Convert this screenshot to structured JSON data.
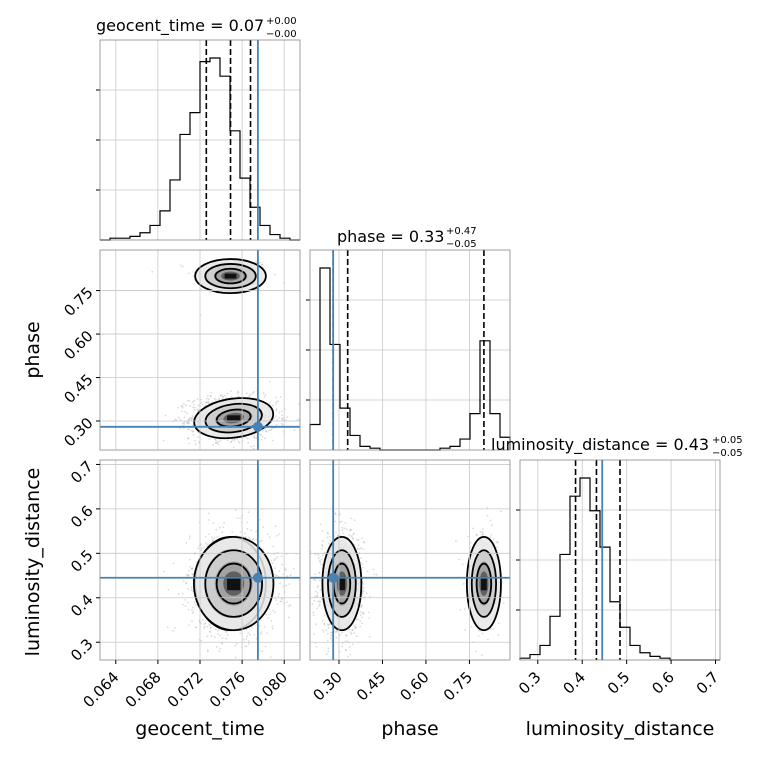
{
  "chart_data": {
    "type": "corner",
    "parameters": [
      "geocent_time",
      "phase",
      "luminosity_distance"
    ],
    "truths": {
      "geocent_time": 0.0775,
      "phase": 0.28,
      "luminosity_distance": 0.445
    },
    "truth_color": "#4682b4",
    "titles": [
      {
        "param": "geocent_time",
        "text": "geocent_time = 0.07",
        "sup": "+0.00",
        "sub": "−0.00"
      },
      {
        "param": "phase",
        "text": "phase = 0.33",
        "sup": "+0.47",
        "sub": "−0.05"
      },
      {
        "param": "luminosity_distance",
        "text": "luminosity_distance = 0.43",
        "sup": "+0.05",
        "sub": "−0.05"
      }
    ],
    "axis_labels": {
      "geocent_time": "geocent_time",
      "phase": "phase",
      "luminosity_distance": "luminosity_distance"
    },
    "ranges": {
      "geocent_time": [
        0.0625,
        0.0815
      ],
      "phase": [
        0.2,
        0.89
      ],
      "luminosity_distance": [
        0.26,
        0.71
      ]
    },
    "ticks": {
      "geocent_time": [
        "0.064",
        "0.068",
        "0.072",
        "0.076",
        "0.080"
      ],
      "phase": [
        "0.30",
        "0.45",
        "0.60",
        "0.75"
      ],
      "luminosity_distance": [
        "0.3",
        "0.4",
        "0.5",
        "0.6",
        "0.7"
      ]
    },
    "quantiles": {
      "geocent_time": [
        0.0726,
        0.0749,
        0.0768
      ],
      "phase": [
        0.28,
        0.33,
        0.8
      ],
      "luminosity_distance": [
        0.385,
        0.432,
        0.485
      ]
    },
    "histograms": {
      "geocent_time": {
        "edges": [
          0.0625,
          0.0815
        ],
        "counts": [
          0,
          1,
          1,
          2,
          4,
          8,
          16,
          33,
          58,
          70,
          98,
          100,
          90,
          60,
          34,
          18,
          8,
          3,
          1,
          0
        ]
      },
      "phase": {
        "edges": [
          0.2,
          0.89
        ],
        "counts": [
          14,
          100,
          58,
          23,
          8,
          2,
          1,
          0,
          0,
          0,
          0,
          0,
          0,
          1,
          2,
          6,
          20,
          60,
          20,
          7
        ]
      },
      "luminosity_distance": {
        "edges": [
          0.26,
          0.71
        ],
        "counts": [
          1,
          3,
          8,
          24,
          58,
          90,
          100,
          82,
          62,
          32,
          18,
          8,
          4,
          2,
          1,
          0,
          0,
          0,
          0,
          0
        ]
      }
    },
    "modes": [
      {
        "geocent_time": 0.0749,
        "phase": 0.8,
        "luminosity_distance": 0.432,
        "w": 0.15,
        "sd": {
          "geocent_time": 0.0016,
          "phase": 0.028,
          "luminosity_distance": 0.05
        }
      },
      {
        "geocent_time": 0.0752,
        "phase": 0.31,
        "luminosity_distance": 0.432,
        "w": 0.85,
        "sd": {
          "geocent_time": 0.0018,
          "phase": 0.032,
          "luminosity_distance": 0.05
        }
      }
    ]
  }
}
